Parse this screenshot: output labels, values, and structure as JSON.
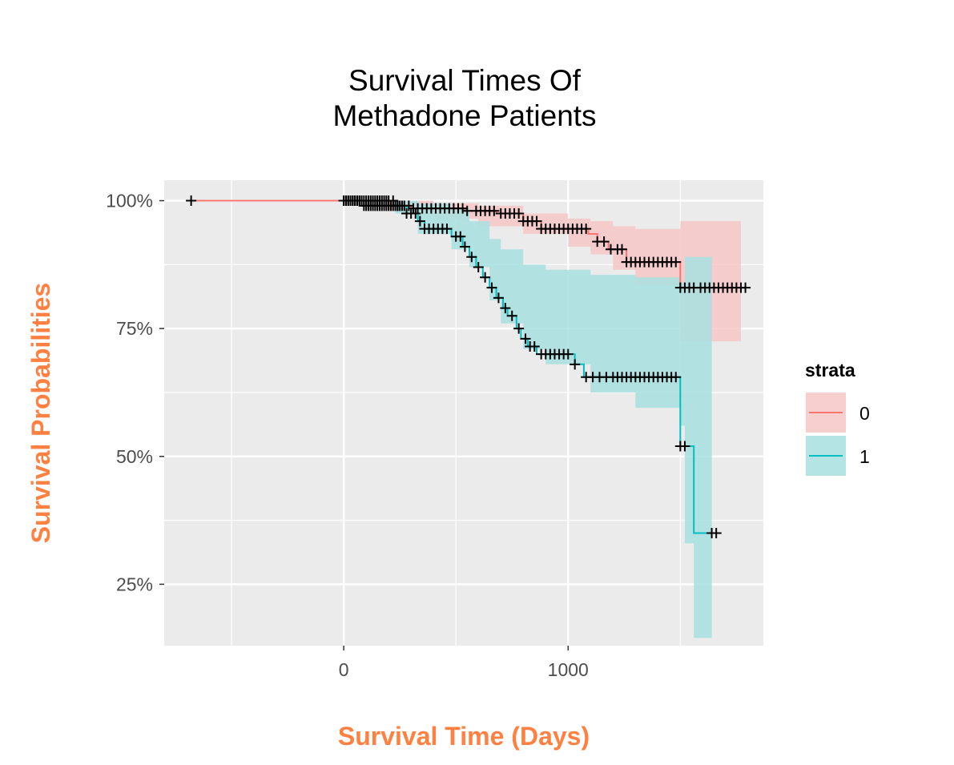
{
  "chart_data": {
    "type": "line",
    "subtype": "kaplan-meier step survival curves with confidence bands and censoring marks",
    "title": [
      "Survival Times Of",
      "Methadone Patients"
    ],
    "xlabel": "Survival Time (Days)",
    "ylabel": "Survival Probabilities",
    "xlim": [
      -800,
      1870
    ],
    "ylim": [
      0.13,
      1.04
    ],
    "x_ticks": [
      0,
      1000
    ],
    "x_tick_labels": [
      "0",
      "1000"
    ],
    "y_ticks": [
      0.25,
      0.5,
      0.75,
      1.0
    ],
    "y_tick_labels": [
      "25%",
      "50%",
      "75%",
      "100%"
    ],
    "grid": true,
    "panel_background": "#ebebeb",
    "axis_title_color": "#ff8040",
    "legend": {
      "title": "strata",
      "position": "right"
    },
    "series": [
      {
        "name": "0",
        "color": "#f8766d",
        "fill": "#f4c7c5",
        "steps": [
          [
            -680,
            1.0
          ],
          [
            90,
            0.99
          ],
          [
            300,
            0.985
          ],
          [
            540,
            0.98
          ],
          [
            680,
            0.975
          ],
          [
            800,
            0.96
          ],
          [
            880,
            0.945
          ],
          [
            1090,
            0.935
          ],
          [
            1130,
            0.92
          ],
          [
            1180,
            0.905
          ],
          [
            1260,
            0.88
          ],
          [
            1500,
            0.83
          ],
          [
            1790,
            0.83
          ]
        ],
        "band": [
          [
            -680,
            1.0,
            1.0
          ],
          [
            0,
            1.0,
            1.0
          ],
          [
            200,
            1.0,
            0.98
          ],
          [
            400,
            0.995,
            0.965
          ],
          [
            600,
            0.99,
            0.95
          ],
          [
            800,
            0.975,
            0.935
          ],
          [
            1000,
            0.965,
            0.91
          ],
          [
            1100,
            0.96,
            0.895
          ],
          [
            1200,
            0.95,
            0.865
          ],
          [
            1300,
            0.945,
            0.835
          ],
          [
            1500,
            0.96,
            0.725
          ],
          [
            1770,
            0.96,
            0.725
          ]
        ],
        "censored": [
          -680,
          0,
          10,
          20,
          30,
          40,
          50,
          60,
          70,
          80,
          90,
          100,
          110,
          120,
          130,
          140,
          150,
          160,
          170,
          180,
          190,
          200,
          210,
          220,
          230,
          240,
          250,
          270,
          290,
          310,
          330,
          350,
          370,
          390,
          410,
          430,
          450,
          470,
          490,
          510,
          530,
          550,
          590,
          610,
          630,
          650,
          670,
          700,
          720,
          740,
          760,
          780,
          800,
          820,
          840,
          860,
          880,
          900,
          920,
          940,
          960,
          980,
          1000,
          1020,
          1040,
          1060,
          1080,
          1130,
          1160,
          1190,
          1220,
          1240,
          1260,
          1280,
          1300,
          1320,
          1340,
          1360,
          1380,
          1400,
          1420,
          1440,
          1460,
          1480,
          1500,
          1520,
          1540,
          1560,
          1590,
          1610,
          1630,
          1650,
          1670,
          1690,
          1710,
          1730,
          1750,
          1770,
          1790
        ]
      },
      {
        "name": "1",
        "color": "#00bfc4",
        "fill": "#a8dfe1",
        "steps": [
          [
            0,
            1.0
          ],
          [
            230,
            0.99
          ],
          [
            280,
            0.975
          ],
          [
            330,
            0.96
          ],
          [
            360,
            0.945
          ],
          [
            480,
            0.93
          ],
          [
            530,
            0.91
          ],
          [
            560,
            0.89
          ],
          [
            590,
            0.87
          ],
          [
            620,
            0.85
          ],
          [
            650,
            0.83
          ],
          [
            680,
            0.81
          ],
          [
            710,
            0.79
          ],
          [
            730,
            0.775
          ],
          [
            770,
            0.75
          ],
          [
            790,
            0.73
          ],
          [
            820,
            0.715
          ],
          [
            860,
            0.7
          ],
          [
            1030,
            0.68
          ],
          [
            1070,
            0.655
          ],
          [
            1500,
            0.52
          ],
          [
            1560,
            0.35
          ],
          [
            1640,
            0.35
          ]
        ],
        "band": [
          [
            0,
            1.0,
            1.0
          ],
          [
            230,
            1.0,
            0.975
          ],
          [
            330,
            0.995,
            0.935
          ],
          [
            480,
            0.985,
            0.905
          ],
          [
            560,
            0.96,
            0.87
          ],
          [
            650,
            0.925,
            0.805
          ],
          [
            700,
            0.905,
            0.76
          ],
          [
            800,
            0.875,
            0.71
          ],
          [
            900,
            0.865,
            0.68
          ],
          [
            1100,
            0.855,
            0.625
          ],
          [
            1300,
            0.85,
            0.595
          ],
          [
            1500,
            0.84,
            0.56
          ],
          [
            1520,
            0.89,
            0.33
          ],
          [
            1560,
            0.89,
            0.145
          ],
          [
            1640,
            0.89,
            0.145
          ]
        ],
        "censored": [
          0,
          10,
          20,
          30,
          40,
          50,
          60,
          70,
          80,
          90,
          100,
          110,
          120,
          130,
          140,
          150,
          160,
          170,
          180,
          190,
          200,
          220,
          240,
          260,
          280,
          300,
          320,
          340,
          360,
          380,
          400,
          420,
          440,
          460,
          500,
          520,
          540,
          570,
          600,
          630,
          660,
          690,
          720,
          750,
          780,
          810,
          830,
          850,
          880,
          900,
          920,
          940,
          960,
          980,
          1000,
          1030,
          1080,
          1110,
          1140,
          1170,
          1200,
          1220,
          1240,
          1260,
          1280,
          1300,
          1320,
          1340,
          1360,
          1380,
          1400,
          1420,
          1440,
          1460,
          1480,
          1500,
          1520,
          1640,
          1660
        ]
      }
    ]
  }
}
